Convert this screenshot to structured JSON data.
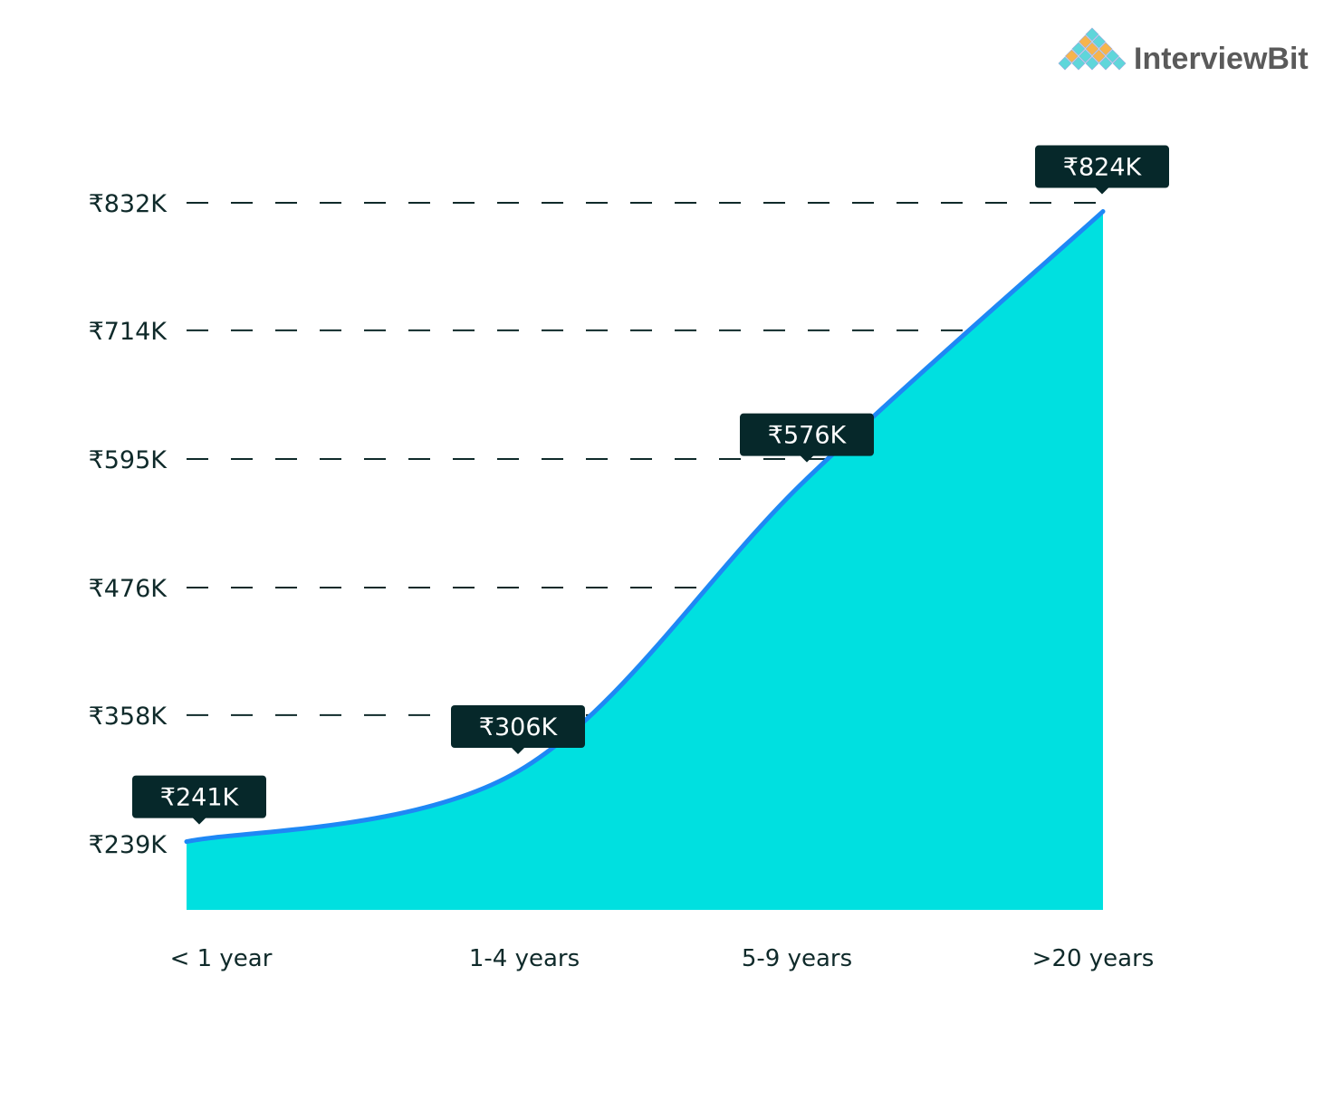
{
  "brand": {
    "name": "InterviewBit",
    "colors": {
      "teal": "#5fd6da",
      "orange": "#f7b44c"
    }
  },
  "chart_data": {
    "type": "area",
    "title": "",
    "xlabel": "",
    "ylabel": "",
    "categories": [
      "< 1 year",
      "1-4 years",
      "5-9 years",
      ">20 years"
    ],
    "values": [
      241,
      306,
      576,
      824
    ],
    "data_labels": [
      "₹241K",
      "₹306K",
      "₹576K",
      "₹824K"
    ],
    "y_unit": "₹ thousands",
    "y_ticks": [
      239,
      358,
      476,
      595,
      714,
      832
    ],
    "y_tick_labels": [
      "₹239K",
      "₹358K",
      "₹476K",
      "₹595K",
      "₹714K",
      "₹832K"
    ],
    "grid": "dashed horizontal",
    "legend": "none",
    "colors": {
      "fill": "#00e0e0",
      "line": "#1e88f5",
      "label_bg": "#06282a",
      "grid": "#0f2a2a"
    }
  }
}
